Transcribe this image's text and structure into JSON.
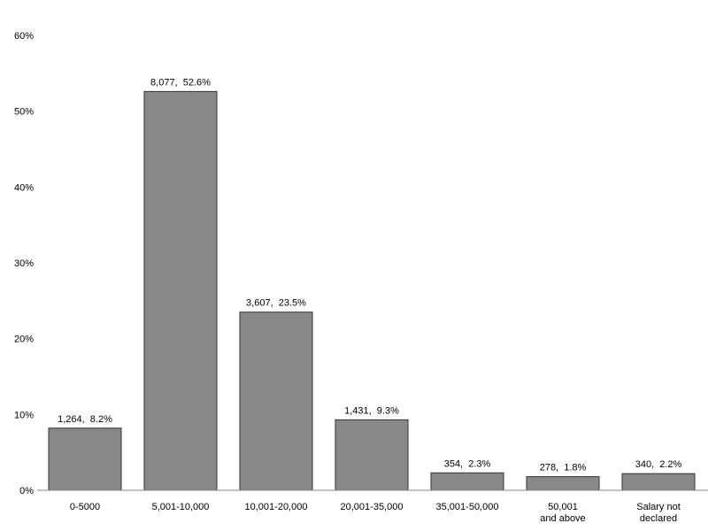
{
  "chart_data": {
    "type": "bar",
    "title": "",
    "xlabel": "",
    "ylabel": "",
    "categories": [
      "0-5000",
      "5,001-10,000",
      "10,001-20,000",
      "20,001-35,000",
      "35,001-50,000",
      "50,001 and above",
      "Salary not declared"
    ],
    "counts": [
      1264,
      8077,
      3607,
      1431,
      354,
      278,
      340
    ],
    "values": [
      8.2,
      52.6,
      23.5,
      9.3,
      2.3,
      1.8,
      2.2
    ],
    "data_labels": [
      "1,264,  8.2%",
      "8,077,  52.6%",
      "3,607,  23.5%",
      "1,431,  9.3%",
      "354,  2.3%",
      "278,  1.8%",
      "340,  2.2%"
    ],
    "ylim": [
      0,
      60
    ],
    "y_ticks": [
      0,
      10,
      20,
      30,
      40,
      50,
      60
    ],
    "y_tick_labels": [
      "0%",
      "10%",
      "20%",
      "30%",
      "40%",
      "50%",
      "60%"
    ],
    "grid": false,
    "legend": "none",
    "colors": {
      "bar_fill": "#888888",
      "bar_stroke": "#333333",
      "axis": "#888888",
      "background": "#ffffff"
    }
  }
}
